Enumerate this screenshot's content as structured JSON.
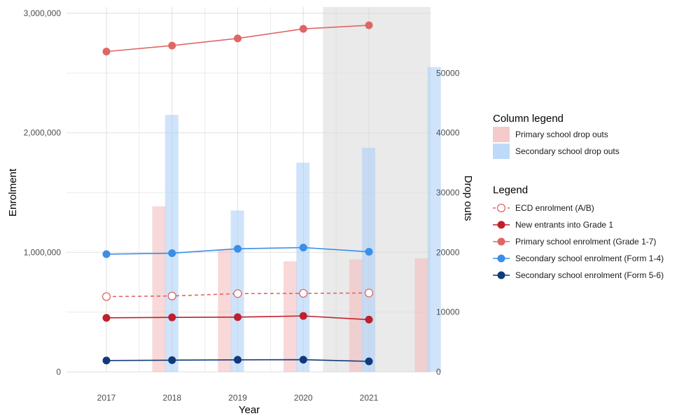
{
  "chart_data": {
    "type": "bar+line",
    "title": "",
    "xlabel": "Year",
    "ylabel_left": "Enrolment",
    "ylabel_right": "Drop outs",
    "x_ticks": [
      2017,
      2018,
      2019,
      2020,
      2021
    ],
    "left_ticks": [
      "0",
      "1,000,000",
      "2,000,000",
      "3,000,000"
    ],
    "right_ticks": [
      "0",
      "10000",
      "20000",
      "30000",
      "40000",
      "50000"
    ],
    "ylim_left": [
      0,
      3000000
    ],
    "ylim_right": [
      0,
      60000
    ],
    "shaded_region": "2020.3 to end",
    "grid": true,
    "legend_position": "right",
    "column_legend": {
      "title": "Column legend",
      "items": [
        {
          "label": "Primary school drop outs",
          "color": "#f2b8b8"
        },
        {
          "label": "Secondary school drop outs",
          "color": "#a8cdf5"
        }
      ]
    },
    "line_legend": {
      "title": "Legend",
      "items": [
        {
          "label": "ECD enrolment (A/B)",
          "color": "#e06666",
          "style": "dashed-open"
        },
        {
          "label": "New entrants into Grade 1",
          "color": "#c0202b",
          "style": "solid"
        },
        {
          "label": "Primary school enrolment (Grade 1-7)",
          "color": "#e06666",
          "style": "solid"
        },
        {
          "label": "Secondary school enrolment (Form 1-4)",
          "color": "#3a8ee6",
          "style": "solid"
        },
        {
          "label": "Secondary school enrolment (Form 5-6)",
          "color": "#123a7a",
          "style": "solid"
        }
      ]
    },
    "bars": {
      "primary_dropouts": {
        "x": [
          2017.8,
          2018.8,
          2019.8,
          2020.8,
          2021.8
        ],
        "values": [
          27700,
          20500,
          18500,
          18800,
          19000
        ]
      },
      "secondary_dropouts": {
        "x": [
          2018,
          2019,
          2020,
          2021,
          2022
        ],
        "values": [
          43000,
          27000,
          35000,
          37500,
          51000
        ]
      }
    },
    "series": [
      {
        "key": "primary",
        "x": [
          2017,
          2018,
          2019,
          2020,
          2021
        ],
        "values": [
          2680000,
          2730000,
          2790000,
          2870000,
          2900000
        ]
      },
      {
        "key": "form14",
        "x": [
          2017,
          2018,
          2019,
          2020,
          2021
        ],
        "values": [
          985000,
          993000,
          1030000,
          1040000,
          1005000
        ]
      },
      {
        "key": "ecd",
        "x": [
          2017,
          2018,
          2019,
          2020,
          2021
        ],
        "values": [
          630000,
          635000,
          655000,
          657000,
          660000
        ]
      },
      {
        "key": "grade1",
        "x": [
          2017,
          2018,
          2019,
          2020,
          2021
        ],
        "values": [
          452000,
          456000,
          458000,
          468000,
          437000
        ]
      },
      {
        "key": "form56",
        "x": [
          2017,
          2018,
          2019,
          2020,
          2021
        ],
        "values": [
          95000,
          98000,
          101000,
          102000,
          88000
        ]
      }
    ]
  }
}
